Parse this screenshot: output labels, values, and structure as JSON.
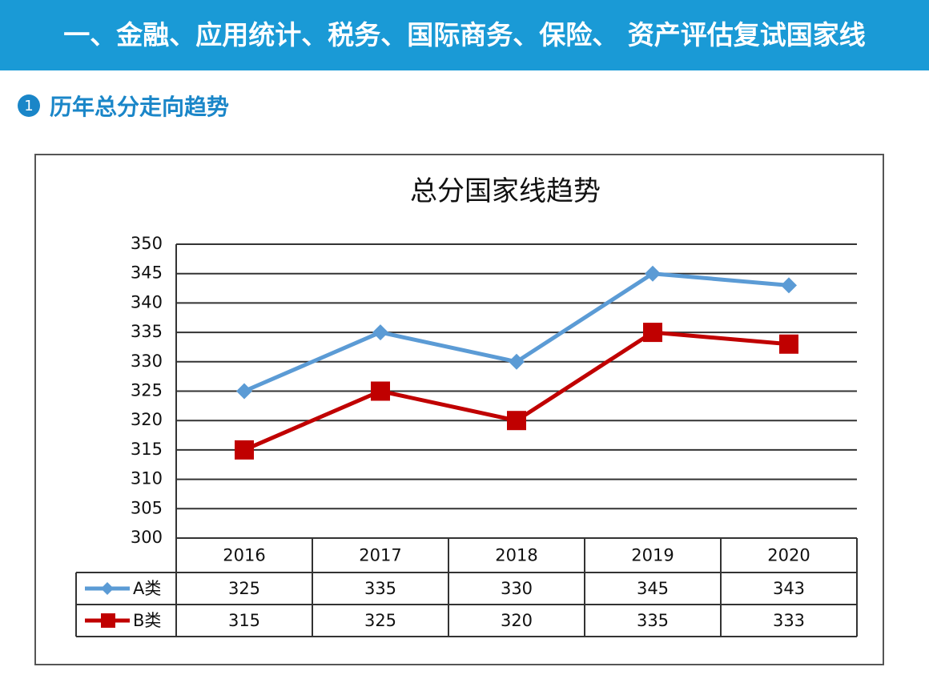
{
  "header": {
    "title": "一、金融、应用统计、税务、国际商务、保险、 资产评估复试国家线",
    "section_number": "1",
    "section_title": "历年总分走向趋势"
  },
  "chart_data": {
    "type": "line",
    "title": "总分国家线趋势",
    "categories": [
      "2016",
      "2017",
      "2018",
      "2019",
      "2020"
    ],
    "series": [
      {
        "name": "A类",
        "color": "#5b9bd5",
        "marker": "diamond",
        "values": [
          325,
          335,
          330,
          345,
          343
        ]
      },
      {
        "name": "B类",
        "color": "#c00000",
        "marker": "square",
        "values": [
          315,
          325,
          320,
          335,
          333
        ]
      }
    ],
    "ylim": [
      300,
      350
    ],
    "yticks": [
      300,
      305,
      310,
      315,
      320,
      325,
      330,
      335,
      340,
      345,
      350
    ],
    "grid": true
  }
}
